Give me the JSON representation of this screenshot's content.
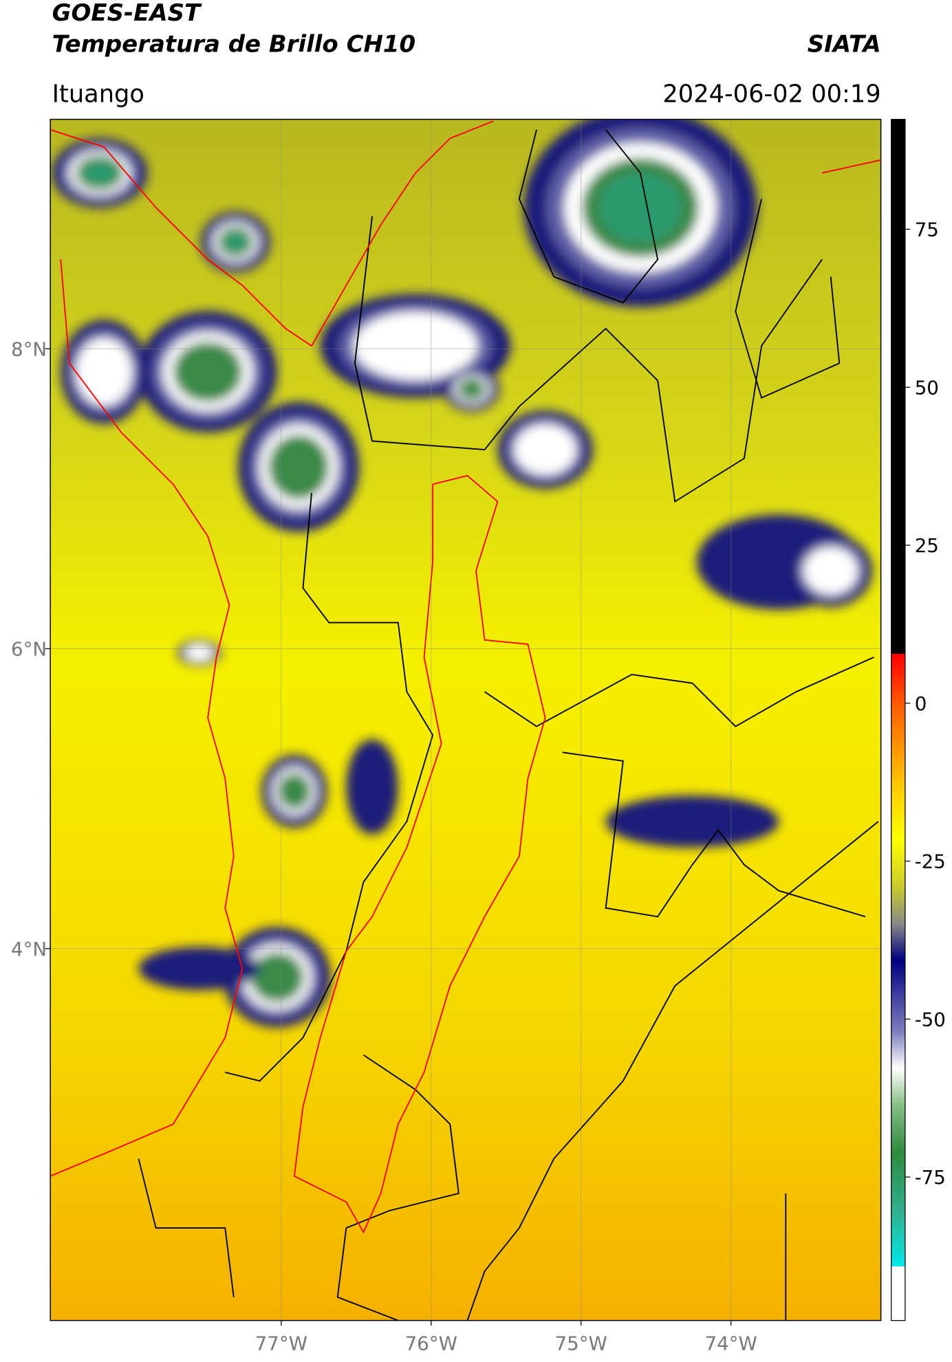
{
  "header": {
    "title": "GOES-EAST",
    "subtitle": "Temperatura de Brillo CH10",
    "source": "SIATA",
    "location": "Ituango",
    "datetime": "2024-06-02 00:19"
  },
  "map": {
    "lon_range": [
      -78.54,
      -73.0
    ],
    "lat_range": [
      1.52,
      9.53
    ],
    "lon_ticks": [
      {
        "value": -77,
        "label": "77°W"
      },
      {
        "value": -76,
        "label": "76°W"
      },
      {
        "value": -75,
        "label": "75°W"
      },
      {
        "value": -74,
        "label": "74°W"
      }
    ],
    "lat_ticks": [
      {
        "value": 8,
        "label": "8°N"
      },
      {
        "value": 6,
        "label": "6°N"
      },
      {
        "value": 4,
        "label": "4°N"
      }
    ]
  },
  "colorbar": {
    "range": [
      -97.7,
      92.4
    ],
    "ticks": [
      75,
      50,
      25,
      0,
      -25,
      -50,
      -75
    ]
  }
}
